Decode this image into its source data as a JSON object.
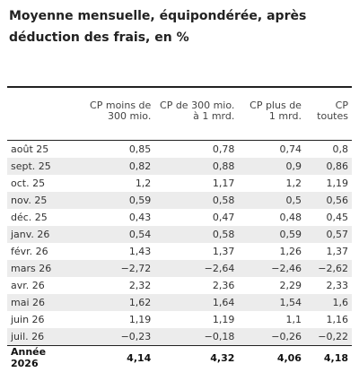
{
  "title": "Moyenne mensuelle, équipondérée, après déduction des frais, en %",
  "table": {
    "header": [
      "CP moins de 300 mio.",
      "CP de 300 mio. à 1 mrd.",
      "CP plus de 1 mrd.",
      "CP toutes"
    ],
    "rows": [
      [
        "août 25",
        "0,85",
        "0,78",
        "0,74",
        "0,8"
      ],
      [
        "sept. 25",
        "0,82",
        "0,88",
        "0,9",
        "0,86"
      ],
      [
        "oct. 25",
        "1,2",
        "1,17",
        "1,2",
        "1,19"
      ],
      [
        "nov. 25",
        "0,59",
        "0,58",
        "0,5",
        "0,56"
      ],
      [
        "déc. 25",
        "0,43",
        "0,47",
        "0,48",
        "0,45"
      ],
      [
        "janv. 26",
        "0,54",
        "0,58",
        "0,59",
        "0,57"
      ],
      [
        "févr. 26",
        "1,43",
        "1,37",
        "1,26",
        "1,37"
      ],
      [
        "mars 26",
        "−2,72",
        "−2,64",
        "−2,46",
        "−2,62"
      ],
      [
        "avr. 26",
        "2,32",
        "2,36",
        "2,29",
        "2,33"
      ],
      [
        "mai 26",
        "1,62",
        "1,64",
        "1,54",
        "1,6"
      ],
      [
        "juin 26",
        "1,19",
        "1,19",
        "1,1",
        "1,16"
      ],
      [
        "juil. 26",
        "−0,23",
        "−0,18",
        "−0,26",
        "−0,22"
      ],
      [
        "Année 2026",
        "4,14",
        "4,32",
        "4,06",
        "4,18"
      ]
    ]
  }
}
